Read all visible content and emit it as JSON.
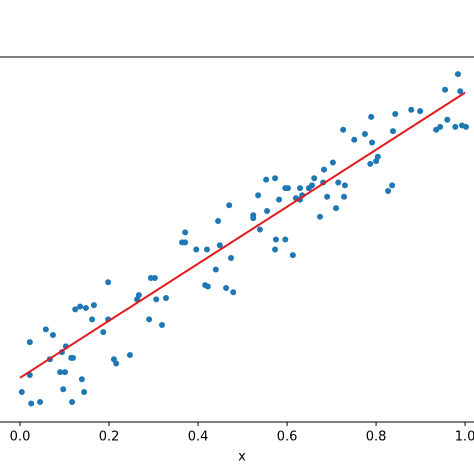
{
  "chart_data": {
    "type": "scatter",
    "xlabel": "x",
    "xlim": [
      -0.045,
      1.02
    ],
    "ylim": [
      0.69,
      3.25
    ],
    "xticks": [
      {
        "value": 0,
        "label": "0.0"
      },
      {
        "value": 0.2,
        "label": "0.2"
      },
      {
        "value": 0.4,
        "label": "0.4"
      },
      {
        "value": 0.6,
        "label": "0.6"
      },
      {
        "value": 0.8,
        "label": "0.8"
      },
      {
        "value": 1,
        "label": "1.0"
      }
    ],
    "series": [
      {
        "type": "scatter",
        "color": "#1f77b4",
        "x": [
          0.004,
          0.022,
          0.022,
          0.025,
          0.045,
          0.058,
          0.067,
          0.074,
          0.09,
          0.094,
          0.101,
          0.103,
          0.097,
          0.115,
          0.119,
          0.117,
          0.124,
          0.135,
          0.139,
          0.144,
          0.148,
          0.162,
          0.166,
          0.187,
          0.198,
          0.211,
          0.216,
          0.247,
          0.263,
          0.267,
          0.29,
          0.294,
          0.303,
          0.319,
          0.328,
          0.364,
          0.371,
          0.371,
          0.396,
          0.416,
          0.422,
          0.42,
          0.44,
          0.445,
          0.449,
          0.463,
          0.47,
          0.474,
          0.479,
          0.524,
          0.535,
          0.539,
          0.553,
          0.555,
          0.573,
          0.573,
          0.575,
          0.582,
          0.596,
          0.602,
          0.613,
          0.62,
          0.629,
          0.634,
          0.649,
          0.656,
          0.661,
          0.674,
          0.681,
          0.683,
          0.69,
          0.703,
          0.71,
          0.715,
          0.728,
          0.73,
          0.751,
          0.726,
          0.789,
          0.791,
          0.804,
          0.8,
          0.827,
          0.836,
          0.838,
          0.843,
          0.879,
          0.899,
          0.935,
          0.944,
          0.955,
          0.984,
          0.978,
          0.993,
          1.002,
          0.96,
          0.989,
          0.787,
          0.596,
          0.629,
          0.524,
          0.306,
          0.198,
          0.775
        ],
        "values": [
          0.9,
          1.02,
          1.25,
          0.82,
          0.83,
          1.34,
          1.13,
          1.3,
          1.04,
          1.18,
          1.04,
          1.22,
          0.92,
          1.14,
          1.14,
          0.83,
          1.48,
          1.5,
          0.99,
          0.9,
          1.49,
          1.41,
          1.51,
          1.32,
          1.67,
          1.13,
          1.1,
          1.16,
          1.55,
          1.58,
          1.41,
          1.7,
          1.7,
          1.37,
          1.56,
          1.95,
          2.02,
          1.95,
          1.9,
          1.65,
          1.64,
          1.9,
          1.76,
          2.1,
          1.93,
          1.63,
          2.21,
          1.84,
          1.6,
          2.12,
          2.28,
          2.04,
          2.39,
          2.17,
          1.9,
          2.4,
          1.97,
          2.25,
          1.97,
          2.33,
          1.86,
          2.26,
          2.33,
          2.28,
          2.33,
          2.35,
          2.4,
          2.13,
          2.37,
          2.46,
          2.27,
          2.51,
          2.19,
          2.37,
          2.27,
          2.35,
          2.67,
          2.74,
          2.83,
          2.65,
          2.55,
          2.52,
          2.31,
          2.35,
          2.73,
          2.85,
          2.88,
          2.87,
          2.74,
          2.76,
          3.02,
          3.13,
          2.76,
          2.77,
          2.76,
          2.81,
          3.01,
          2.5,
          2.33,
          2.25,
          2.14,
          1.55,
          1.41,
          2.71
        ]
      },
      {
        "type": "line",
        "color": "#e31a1c",
        "x": [
          0,
          1
        ],
        "values": [
          1,
          3
        ]
      }
    ]
  }
}
